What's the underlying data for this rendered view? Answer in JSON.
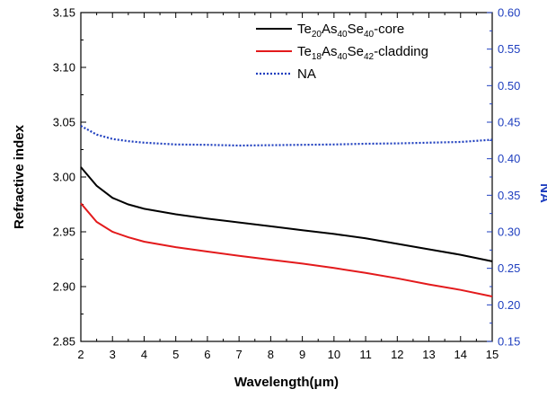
{
  "chart_data": {
    "type": "line",
    "xlabel": "Wavelength(μm)",
    "ylabel": "Refractive index",
    "y2label": "NA",
    "xlim": [
      2,
      15
    ],
    "ylim": [
      2.85,
      3.15
    ],
    "y2lim": [
      0.15,
      0.6
    ],
    "x_ticks": [
      "2",
      "3",
      "4",
      "5",
      "6",
      "7",
      "8",
      "9",
      "10",
      "11",
      "12",
      "13",
      "14",
      "15"
    ],
    "y_ticks": [
      "2.85",
      "2.90",
      "2.95",
      "3.00",
      "3.05",
      "3.10",
      "3.15"
    ],
    "y2_ticks": [
      "0.15",
      "0.20",
      "0.25",
      "0.30",
      "0.35",
      "0.40",
      "0.45",
      "0.50",
      "0.55",
      "0.60"
    ],
    "grid": false,
    "legend_position": "top-right",
    "series": [
      {
        "name_parts": [
          [
            "Te",
            ""
          ],
          [
            "20",
            "sub"
          ],
          [
            "As",
            ""
          ],
          [
            "40",
            "sub"
          ],
          [
            "Se",
            ""
          ],
          [
            "40",
            "sub"
          ],
          [
            "-core",
            ""
          ]
        ],
        "axis": "left",
        "color": "#000000",
        "style": "solid",
        "x": [
          2,
          2.5,
          3,
          3.5,
          4,
          5,
          6,
          7,
          8,
          9,
          10,
          11,
          12,
          13,
          14,
          15
        ],
        "y": [
          3.009,
          2.992,
          2.981,
          2.975,
          2.971,
          2.966,
          2.962,
          2.9585,
          2.955,
          2.9515,
          2.948,
          2.944,
          2.939,
          2.934,
          2.929,
          2.923
        ]
      },
      {
        "name_parts": [
          [
            "Te",
            ""
          ],
          [
            "18",
            "sub"
          ],
          [
            "As",
            ""
          ],
          [
            "40",
            "sub"
          ],
          [
            "Se",
            ""
          ],
          [
            "42",
            "sub"
          ],
          [
            "-cladding",
            ""
          ]
        ],
        "axis": "left",
        "color": "#e31a1c",
        "style": "solid",
        "x": [
          2,
          2.5,
          3,
          3.5,
          4,
          5,
          6,
          7,
          8,
          9,
          10,
          11,
          12,
          13,
          14,
          15
        ],
        "y": [
          2.976,
          2.959,
          2.95,
          2.945,
          2.941,
          2.936,
          2.932,
          2.928,
          2.9245,
          2.921,
          2.917,
          2.9125,
          2.9075,
          2.902,
          2.897,
          2.891
        ]
      },
      {
        "name_parts": [
          [
            "NA",
            ""
          ]
        ],
        "axis": "right",
        "color": "#1f3fbf",
        "style": "dotted",
        "x": [
          2,
          2.5,
          3,
          3.5,
          4,
          5,
          6,
          7,
          8,
          9,
          10,
          11,
          12,
          13,
          14,
          15
        ],
        "y": [
          0.445,
          0.433,
          0.427,
          0.424,
          0.422,
          0.4195,
          0.419,
          0.418,
          0.4185,
          0.419,
          0.4195,
          0.4205,
          0.421,
          0.422,
          0.423,
          0.426
        ]
      }
    ]
  }
}
